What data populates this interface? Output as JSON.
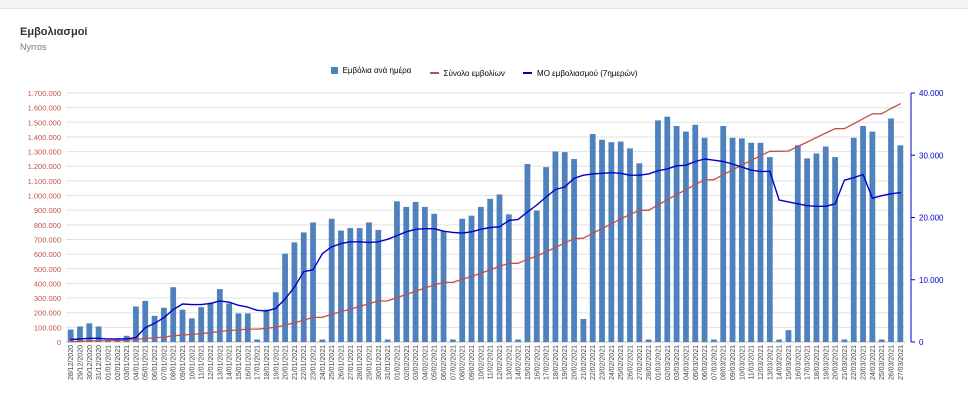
{
  "title": "Εμβολιασμοί",
  "subtitle": "Nyrros",
  "colors": {
    "bars": "#4f81bd",
    "cumulative": "#c0504d",
    "average": "#0000cc",
    "leftAxis": "#c0504d",
    "rightAxis": "#0000cc",
    "grid": "#e2e2e2"
  },
  "chart_data": {
    "type": "bar",
    "grid": true,
    "legend_position": "top",
    "left_ylim": [
      0,
      1700000
    ],
    "right_ylim": [
      0,
      40000
    ],
    "left_ticks": [
      "0",
      "100.000",
      "200.000",
      "300.000",
      "400.000",
      "500.000",
      "600.000",
      "700.000",
      "800.000",
      "900.000",
      "1.000.000",
      "1.100.000",
      "1.200.000",
      "1.300.000",
      "1.400.000",
      "1.500.000",
      "1.600.000",
      "1.700.000"
    ],
    "right_ticks": [
      "0",
      "10.000",
      "20.000",
      "30.000",
      "40.000"
    ],
    "categories": [
      "28/12/2020",
      "29/12/2020",
      "30/12/2020",
      "31/12/2020",
      "01/01/2021",
      "02/01/2021",
      "03/01/2021",
      "04/01/2021",
      "05/01/2021",
      "06/01/2021",
      "07/01/2021",
      "08/01/2021",
      "09/01/2021",
      "10/01/2021",
      "11/01/2021",
      "12/01/2021",
      "13/01/2021",
      "14/01/2021",
      "15/01/2021",
      "16/01/2021",
      "17/01/2021",
      "18/01/2021",
      "19/01/2021",
      "20/01/2021",
      "21/01/2021",
      "22/01/2021",
      "23/01/2021",
      "24/01/2021",
      "25/01/2021",
      "26/01/2021",
      "27/01/2021",
      "28/01/2021",
      "29/01/2021",
      "30/01/2021",
      "31/01/2021",
      "01/02/2021",
      "02/02/2021",
      "03/02/2021",
      "04/02/2021",
      "05/02/2021",
      "06/02/2021",
      "07/02/2021",
      "08/02/2021",
      "09/02/2021",
      "10/02/2021",
      "11/02/2021",
      "12/02/2021",
      "13/02/2021",
      "14/02/2021",
      "15/02/2021",
      "16/02/2021",
      "17/02/2021",
      "18/02/2021",
      "19/02/2021",
      "20/02/2021",
      "21/02/2021",
      "22/02/2021",
      "23/02/2021",
      "24/02/2021",
      "25/02/2021",
      "26/02/2021",
      "27/02/2021",
      "28/02/2021",
      "01/03/2021",
      "02/03/2021",
      "03/03/2021",
      "04/03/2021",
      "05/03/2021",
      "06/03/2021",
      "07/03/2021",
      "08/03/2021",
      "09/03/2021",
      "10/03/2021",
      "11/03/2021",
      "12/03/2021",
      "13/03/2021",
      "14/03/2021",
      "15/03/2021",
      "16/03/2021",
      "17/03/2021",
      "18/03/2021",
      "19/03/2021",
      "20/03/2021",
      "21/03/2021",
      "22/03/2021",
      "23/03/2021",
      "24/03/2021",
      "25/03/2021",
      "26/03/2021",
      "27/03/2021"
    ],
    "series": [
      {
        "name": "Εμβόλια ανά ημέρα",
        "type": "bar",
        "axis": "right",
        "values": [
          2000,
          2500,
          3000,
          2500,
          300,
          500,
          1000,
          5700,
          6600,
          4200,
          5500,
          8800,
          5200,
          3800,
          5600,
          6300,
          8500,
          6200,
          4600,
          4600,
          400,
          5200,
          8000,
          14200,
          16000,
          17600,
          19200,
          400,
          19800,
          17900,
          18300,
          18300,
          19200,
          18000,
          400,
          22600,
          21700,
          22500,
          21700,
          20600,
          17800,
          400,
          19800,
          20300,
          21700,
          23000,
          23700,
          20500,
          400,
          28600,
          21100,
          28100,
          30600,
          30500,
          29400,
          3700,
          33400,
          32500,
          32100,
          32200,
          31100,
          28700,
          400,
          35600,
          36200,
          34700,
          33800,
          34900,
          32800,
          400,
          34700,
          32800,
          32700,
          32000,
          32000,
          29700,
          400,
          1900,
          31600,
          29500,
          30300,
          31400,
          29700,
          400,
          32800,
          34700,
          33800,
          400,
          35900,
          31600
        ]
      },
      {
        "name": "Σύνολο εμβολίων",
        "type": "line",
        "axis": "left",
        "values": [
          2000,
          4500,
          7500,
          10000,
          10300,
          10800,
          11800,
          17500,
          24100,
          28300,
          33800,
          42600,
          47800,
          51600,
          57200,
          63500,
          72000,
          78200,
          82800,
          87400,
          87800,
          93000,
          101000,
          115200,
          131200,
          148800,
          168000,
          168400,
          188200,
          206100,
          224400,
          242700,
          261900,
          279900,
          280300,
          302900,
          324600,
          347100,
          368800,
          389400,
          407200,
          407600,
          427400,
          447700,
          469400,
          492400,
          516100,
          536600,
          537000,
          565600,
          586700,
          614800,
          645400,
          675900,
          705300,
          709000,
          742400,
          774900,
          807000,
          839200,
          870300,
          899000,
          899400,
          935000,
          971200,
          1005900,
          1039700,
          1074600,
          1107400,
          1107800,
          1142500,
          1175300,
          1208000,
          1240000,
          1272000,
          1301700,
          1302100,
          1304000,
          1335600,
          1365100,
          1395400,
          1426800,
          1456500,
          1456900,
          1489700,
          1524400,
          1558200,
          1558600,
          1594500,
          1626100
        ]
      },
      {
        "name": "ΜΟ εμβολιασμού (7ημερών)",
        "type": "line",
        "axis": "right",
        "values": [
          400,
          500,
          600,
          600,
          500,
          500,
          500,
          700,
          2300,
          3000,
          3900,
          5200,
          6100,
          6000,
          6000,
          6200,
          6600,
          6400,
          5900,
          5600,
          5100,
          5000,
          5400,
          6900,
          8800,
          11300,
          11600,
          14200,
          15300,
          15800,
          16100,
          16100,
          16000,
          16100,
          16500,
          17100,
          17700,
          18100,
          18200,
          18200,
          17800,
          17600,
          17500,
          17700,
          18100,
          18400,
          18500,
          19500,
          19700,
          20900,
          22000,
          23300,
          24500,
          24900,
          26300,
          26800,
          27000,
          27100,
          27200,
          27100,
          26800,
          26800,
          27000,
          27500,
          27800,
          28300,
          28400,
          29000,
          29400,
          29200,
          29000,
          28600,
          28100,
          27600,
          27400,
          27400,
          22800,
          22500,
          22200,
          21900,
          21800,
          21800,
          22200,
          26000,
          26400,
          26900,
          23100,
          23500,
          23800,
          24000
        ]
      }
    ]
  }
}
